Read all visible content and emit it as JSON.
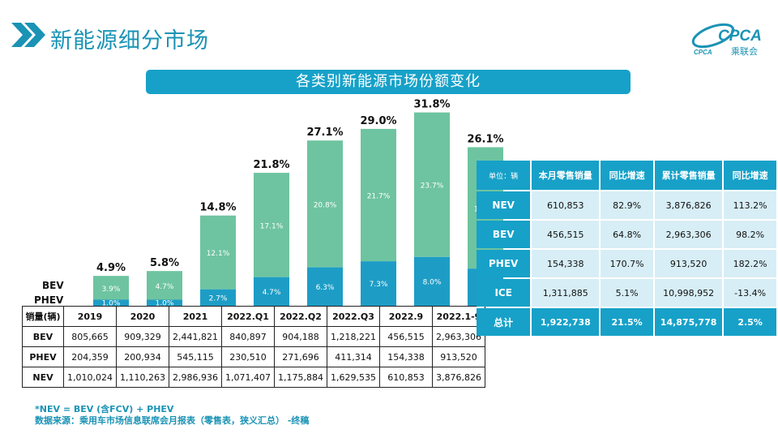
{
  "header": {
    "title": "新能源细分市场"
  },
  "logo": {
    "mark": "CPCA",
    "sub_en": "CPCA",
    "sub_cn": "乘联会"
  },
  "banner": {
    "title": "各类别新能源市场份额变化"
  },
  "colors": {
    "bev": "#6ec4a0",
    "phev": "#1d9dc6",
    "accent": "#17a1c8"
  },
  "chart_data": {
    "type": "bar",
    "stacked": true,
    "title": "各类别新能源市场份额变化",
    "categories": [
      "2019",
      "2020",
      "2021",
      "2022.Q1",
      "2022.Q2",
      "2022.Q3",
      "2022.9",
      "2022.1-9"
    ],
    "series": [
      {
        "name": "PHEV",
        "values": [
          1.0,
          1.0,
          2.7,
          4.7,
          6.3,
          7.3,
          8.0,
          6.1
        ]
      },
      {
        "name": "BEV",
        "values": [
          3.9,
          4.7,
          12.1,
          17.1,
          20.8,
          21.7,
          23.7,
          19.9
        ]
      }
    ],
    "totals": [
      4.9,
      5.8,
      14.8,
      21.8,
      27.1,
      29.0,
      31.8,
      26.1
    ],
    "value_labels": {
      "PHEV": [
        "1.0%",
        "1.0%",
        "2.7%",
        "4.7%",
        "6.3%",
        "7.3%",
        "8.0%",
        "6.1%"
      ],
      "BEV": [
        "3.9%",
        "4.7%",
        "12.1%",
        "17.1%",
        "20.8%",
        "21.7%",
        "23.7%",
        "19.9%"
      ],
      "total": [
        "4.9%",
        "5.8%",
        "14.8%",
        "21.8%",
        "27.1%",
        "29.0%",
        "31.8%",
        "26.1%"
      ]
    },
    "ylim": [
      0,
      35
    ],
    "legend": "left",
    "grid": false,
    "xlabel": "",
    "ylabel": ""
  },
  "sales_table": {
    "corner": "销量(辆)",
    "periods": [
      "2019",
      "2020",
      "2021",
      "2022.Q1",
      "2022.Q2",
      "2022.Q3",
      "2022.9",
      "2022.1-9"
    ],
    "rows": [
      {
        "label": "BEV",
        "values": [
          "805,665",
          "909,329",
          "2,441,821",
          "840,897",
          "904,188",
          "1,218,221",
          "456,515",
          "2,963,306"
        ]
      },
      {
        "label": "PHEV",
        "values": [
          "204,359",
          "200,934",
          "545,115",
          "230,510",
          "271,696",
          "411,314",
          "154,338",
          "913,520"
        ]
      },
      {
        "label": "NEV",
        "values": [
          "1,010,024",
          "1,110,263",
          "2,986,936",
          "1,071,407",
          "1,175,884",
          "1,629,535",
          "610,853",
          "3,876,826"
        ]
      }
    ]
  },
  "retail_table": {
    "unit": "单位：辆",
    "headers": [
      "本月零售销量",
      "同比增速",
      "累计零售销量",
      "同比增速"
    ],
    "rows": [
      {
        "label": "NEV",
        "values": [
          "610,853",
          "82.9%",
          "3,876,826",
          "113.2%"
        ]
      },
      {
        "label": "BEV",
        "values": [
          "456,515",
          "64.8%",
          "2,963,306",
          "98.2%"
        ]
      },
      {
        "label": "PHEV",
        "values": [
          "154,338",
          "170.7%",
          "913,520",
          "182.2%"
        ]
      },
      {
        "label": "ICE",
        "values": [
          "1,311,885",
          "5.1%",
          "10,998,952",
          "-13.4%"
        ]
      },
      {
        "label": "总计",
        "values": [
          "1,922,738",
          "21.5%",
          "14,875,778",
          "2.5%"
        ]
      }
    ]
  },
  "footnotes": {
    "definition": "*NEV = BEV (含FCV) + PHEV",
    "source": "数据来源：乘用车市场信息联席会月报表（零售表，狭义汇总） -终稿"
  }
}
